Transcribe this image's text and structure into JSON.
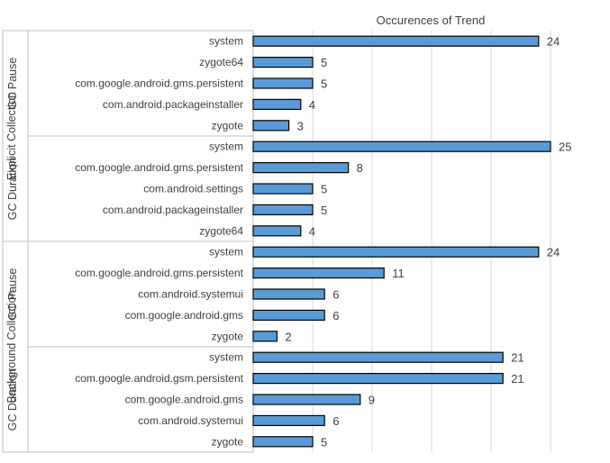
{
  "chart_data": {
    "type": "bar",
    "orientation": "horizontal",
    "title": "Occurences of Trend",
    "title_position": "top",
    "grid": true,
    "xlim": [
      0,
      25
    ],
    "bar_color": "#5b9bd5",
    "bar_outline": "#000000",
    "groups": [
      {
        "name": "Explicit Collection",
        "subgroups": [
          {
            "name": "GC Pause",
            "categories": [
              "system",
              "zygote64",
              "com.google.android.gms.persistent",
              "com.android.packageinstaller",
              "zygote"
            ],
            "values": [
              24,
              5,
              5,
              4,
              3
            ]
          },
          {
            "name": "GC Duration",
            "categories": [
              "system",
              "com.google.android.gms.persistent",
              "com.android.settings",
              "com.android.packageinstaller",
              "zygote64"
            ],
            "values": [
              25,
              8,
              5,
              5,
              4
            ]
          }
        ]
      },
      {
        "name": "Background Collection",
        "subgroups": [
          {
            "name": "GC Pause",
            "categories": [
              "system",
              "com.google.android.gms.persistent",
              "com.android.systemui",
              "com.google.android.gms",
              "zygote"
            ],
            "values": [
              24,
              11,
              6,
              6,
              2
            ]
          },
          {
            "name": "GC Duration",
            "categories": [
              "system",
              "com.google.android.gsm.persistent",
              "com.google.android.gms",
              "com.android.systemui",
              "zygote"
            ],
            "values": [
              21,
              21,
              9,
              6,
              5
            ]
          }
        ]
      }
    ]
  }
}
